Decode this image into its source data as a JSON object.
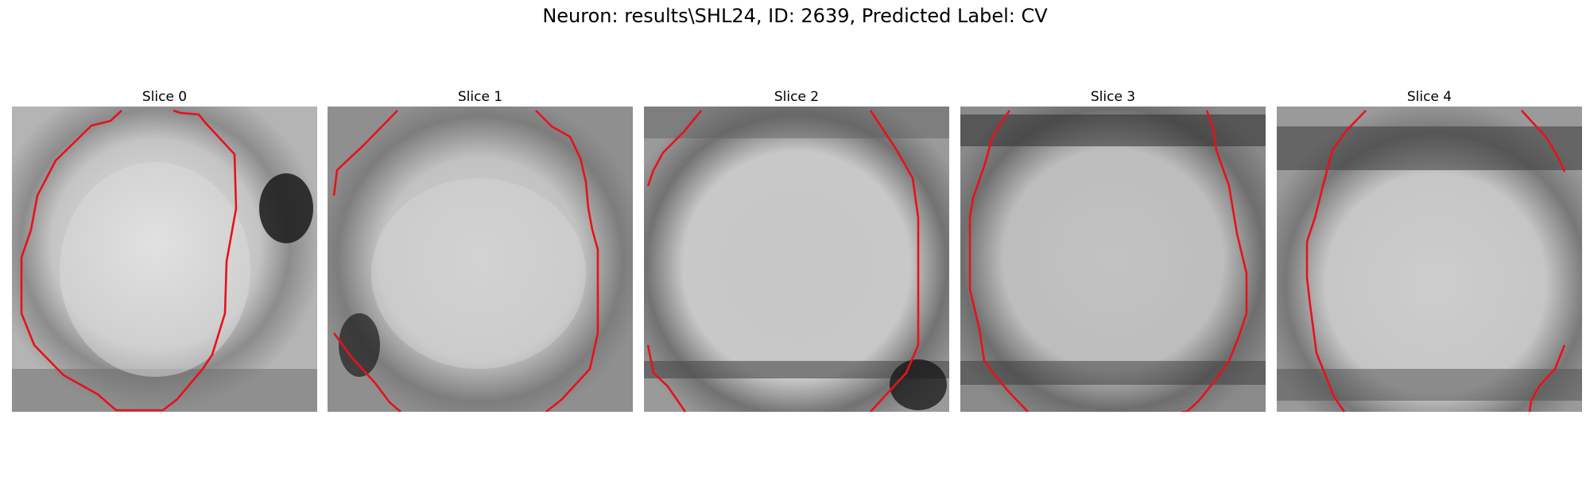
{
  "figure": {
    "title": "Neuron: results\\SHL24, ID: 2639, Predicted Label: CV"
  },
  "colors": {
    "contour": "#e8111b",
    "background": "#ffffff"
  },
  "slices": [
    {
      "label": "Slice 0"
    },
    {
      "label": "Slice 1"
    },
    {
      "label": "Slice 2"
    },
    {
      "label": "Slice 3"
    },
    {
      "label": "Slice 4"
    }
  ]
}
